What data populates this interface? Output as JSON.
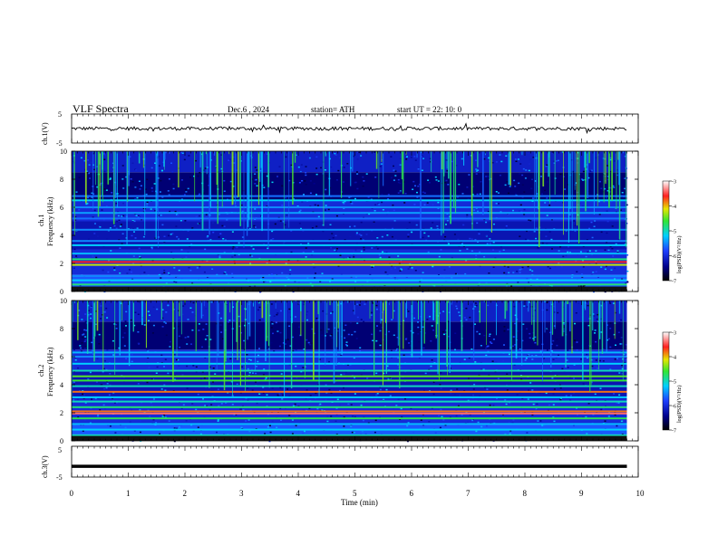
{
  "header": {
    "title": "VLF  Spectra",
    "date": "Dec.6  , 2024",
    "station": "station= ATH",
    "start": "start  UT  =    22: 10: 0"
  },
  "chart_data": [
    {
      "type": "line",
      "name": "ch1-voltage",
      "ylabel": "ch.1(V)",
      "ylim": [
        -5,
        5
      ],
      "yticks": [
        "5",
        "-5"
      ],
      "trace_baseline": 0,
      "trace_amplitude": 0.6
    },
    {
      "type": "heatmap",
      "name": "ch1-spectrogram",
      "ylabel_top": "ch.1",
      "ylabel": "Frequency  (kHz)",
      "ylim": [
        0,
        10
      ],
      "yticks": [
        "0",
        "2",
        "4",
        "6",
        "8",
        "10"
      ],
      "colorbar": {
        "label": "log(PSD)(V²/Hz)",
        "range": [
          -7,
          -3
        ],
        "ticks": [
          "-3",
          "-4",
          "-5",
          "-6",
          "-7"
        ]
      },
      "lines": [
        {
          "f": 0.2,
          "v": -5
        },
        {
          "f": 0.5,
          "v": -4.8
        },
        {
          "f": 0.8,
          "v": -5.2
        },
        {
          "f": 1.1,
          "v": -5.5
        },
        {
          "f": 1.9,
          "v": -4.2
        },
        {
          "f": 2.1,
          "v": -3.6
        },
        {
          "f": 2.3,
          "v": -4.8
        },
        {
          "f": 2.7,
          "v": -5.3
        },
        {
          "f": 3.3,
          "v": -5.2
        },
        {
          "f": 3.6,
          "v": -5.5
        },
        {
          "f": 4.4,
          "v": -5.5
        },
        {
          "f": 5.2,
          "v": -5.6
        },
        {
          "f": 5.6,
          "v": -5.4
        },
        {
          "f": 6.0,
          "v": -5.5
        },
        {
          "f": 6.5,
          "v": -5.2
        },
        {
          "f": 6.8,
          "v": -5.6
        }
      ]
    },
    {
      "type": "heatmap",
      "name": "ch2-spectrogram",
      "ylabel_top": "ch.2",
      "ylabel": "Frequency  (kHz)",
      "ylim": [
        0,
        10
      ],
      "yticks": [
        "0",
        "2",
        "4",
        "6",
        "8",
        "10"
      ],
      "colorbar": {
        "label": "log(PSD)(V²/Hz)",
        "range": [
          -7,
          -3
        ],
        "ticks": [
          "-3",
          "-4",
          "-5",
          "-6",
          "-7"
        ]
      },
      "lines": [
        {
          "f": 0.4,
          "v": -5
        },
        {
          "f": 0.8,
          "v": -5.2
        },
        {
          "f": 1.2,
          "v": -5.3
        },
        {
          "f": 1.6,
          "v": -4.7
        },
        {
          "f": 1.95,
          "v": -3.4
        },
        {
          "f": 2.1,
          "v": -3.8
        },
        {
          "f": 2.4,
          "v": -4.8
        },
        {
          "f": 2.8,
          "v": -5.0
        },
        {
          "f": 3.1,
          "v": -5.2
        },
        {
          "f": 3.5,
          "v": -3.8
        },
        {
          "f": 3.9,
          "v": -5.0
        },
        {
          "f": 4.3,
          "v": -4.6
        },
        {
          "f": 4.6,
          "v": -4.5
        },
        {
          "f": 5.0,
          "v": -5.0
        },
        {
          "f": 5.5,
          "v": -5.2
        },
        {
          "f": 6.0,
          "v": -5.5
        },
        {
          "f": 6.3,
          "v": -5.3
        }
      ]
    },
    {
      "type": "line",
      "name": "ch3-voltage",
      "ylabel": "ch.3(V)",
      "ylim": [
        -5,
        5
      ],
      "yticks": [
        "5",
        "-5"
      ],
      "trace_value": -1.5
    }
  ],
  "xaxis": {
    "label": "Time  (min)",
    "range": [
      0,
      10
    ],
    "ticks": [
      "0",
      "1",
      "2",
      "3",
      "4",
      "5",
      "6",
      "7",
      "8",
      "9",
      "10"
    ],
    "data_end": 9.8
  }
}
